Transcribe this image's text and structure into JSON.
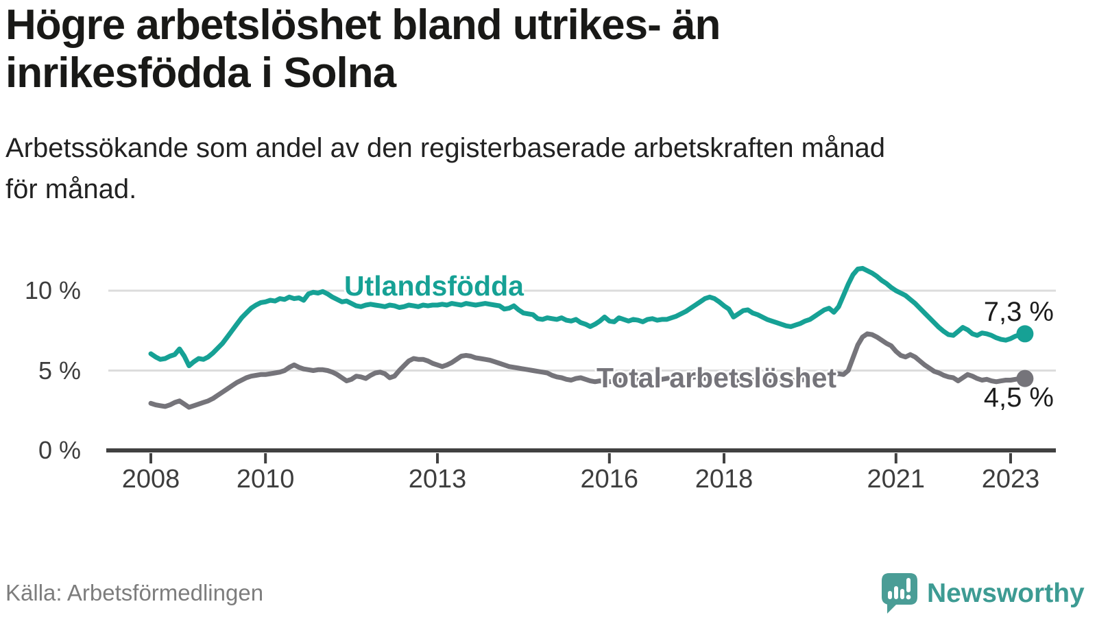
{
  "header": {
    "title_lines": [
      "Högre arbetslöshet bland utrikes- än",
      "inrikesfödda i Solna"
    ],
    "subtitle_lines": [
      "Arbetssökande som andel av den registerbaserade arbetskraften månad",
      "för månad."
    ]
  },
  "footer": {
    "source": "Källa: Arbetsförmedlingen",
    "brand": "Newsworthy"
  },
  "colors": {
    "series_foreign_born": "#16a195",
    "series_total": "#75747a",
    "gridline": "#dcdcdc",
    "axis": "#414141",
    "brand_teal": "#4a9d96"
  },
  "chart_data": {
    "type": "line",
    "title": "Arbetssökande som andel av den registerbaserade arbetskraften månad för månad",
    "x_unit": "month",
    "x_start_year": 2008,
    "x_end": "2023-04",
    "x_ticks": [
      2008,
      2010,
      2013,
      2016,
      2018,
      2021,
      2023
    ],
    "y_ticks": [
      {
        "label": "0 %",
        "value": 0
      },
      {
        "label": "5 %",
        "value": 5
      },
      {
        "label": "10 %",
        "value": 10
      }
    ],
    "ylim": [
      0,
      12
    ],
    "grid": "horizontal",
    "legend_position": "inline-labels",
    "series": [
      {
        "name": "Utlandsfödda",
        "end_label": "7,3 %",
        "end_value": 7.3,
        "color": "#16a195",
        "values": [
          6.05,
          5.85,
          5.7,
          5.75,
          5.9,
          6.0,
          6.35,
          5.9,
          5.3,
          5.55,
          5.75,
          5.7,
          5.85,
          6.1,
          6.4,
          6.7,
          7.1,
          7.5,
          7.9,
          8.3,
          8.6,
          8.9,
          9.1,
          9.25,
          9.3,
          9.4,
          9.35,
          9.5,
          9.45,
          9.6,
          9.5,
          9.55,
          9.4,
          9.8,
          9.9,
          9.85,
          9.95,
          9.8,
          9.6,
          9.45,
          9.3,
          9.35,
          9.2,
          9.05,
          9.0,
          9.1,
          9.15,
          9.1,
          9.05,
          9.0,
          9.1,
          9.05,
          8.95,
          9.0,
          9.1,
          9.05,
          9.0,
          9.1,
          9.05,
          9.1,
          9.1,
          9.15,
          9.1,
          9.2,
          9.15,
          9.1,
          9.2,
          9.15,
          9.1,
          9.15,
          9.2,
          9.15,
          9.1,
          9.05,
          8.85,
          8.9,
          9.05,
          8.8,
          8.6,
          8.55,
          8.5,
          8.25,
          8.2,
          8.3,
          8.25,
          8.2,
          8.3,
          8.15,
          8.1,
          8.2,
          8.0,
          7.9,
          7.75,
          7.9,
          8.1,
          8.35,
          8.1,
          8.05,
          8.3,
          8.2,
          8.1,
          8.2,
          8.15,
          8.05,
          8.2,
          8.25,
          8.15,
          8.2,
          8.2,
          8.3,
          8.4,
          8.55,
          8.7,
          8.9,
          9.1,
          9.3,
          9.5,
          9.6,
          9.5,
          9.3,
          9.05,
          8.85,
          8.35,
          8.55,
          8.75,
          8.8,
          8.6,
          8.5,
          8.35,
          8.2,
          8.1,
          8.0,
          7.9,
          7.8,
          7.75,
          7.85,
          7.95,
          8.1,
          8.2,
          8.4,
          8.6,
          8.8,
          8.9,
          8.65,
          9.0,
          9.7,
          10.4,
          11.0,
          11.35,
          11.4,
          11.25,
          11.1,
          10.9,
          10.65,
          10.45,
          10.2,
          10.0,
          9.85,
          9.7,
          9.45,
          9.2,
          8.9,
          8.6,
          8.3,
          8.0,
          7.7,
          7.45,
          7.25,
          7.2,
          7.45,
          7.7,
          7.55,
          7.3,
          7.2,
          7.35,
          7.3,
          7.2,
          7.05,
          6.95,
          6.9,
          7.0,
          7.15,
          7.25,
          7.3
        ]
      },
      {
        "name": "Total arbetslöshet",
        "end_label": "4,5 %",
        "end_value": 4.5,
        "color": "#75747a",
        "values": [
          2.95,
          2.85,
          2.8,
          2.75,
          2.85,
          3.0,
          3.1,
          2.9,
          2.7,
          2.8,
          2.9,
          3.0,
          3.1,
          3.25,
          3.45,
          3.65,
          3.85,
          4.05,
          4.25,
          4.4,
          4.55,
          4.65,
          4.7,
          4.75,
          4.75,
          4.8,
          4.85,
          4.9,
          5.0,
          5.2,
          5.35,
          5.2,
          5.1,
          5.05,
          5.0,
          5.05,
          5.05,
          5.0,
          4.9,
          4.75,
          4.55,
          4.35,
          4.45,
          4.65,
          4.6,
          4.5,
          4.7,
          4.85,
          4.9,
          4.8,
          4.55,
          4.65,
          5.0,
          5.3,
          5.6,
          5.75,
          5.7,
          5.7,
          5.6,
          5.45,
          5.35,
          5.25,
          5.35,
          5.5,
          5.7,
          5.9,
          5.95,
          5.9,
          5.8,
          5.75,
          5.7,
          5.65,
          5.55,
          5.45,
          5.35,
          5.25,
          5.2,
          5.15,
          5.1,
          5.05,
          5.0,
          4.95,
          4.9,
          4.85,
          4.7,
          4.6,
          4.55,
          4.45,
          4.4,
          4.5,
          4.55,
          4.45,
          4.35,
          4.3,
          4.35,
          4.3,
          4.3,
          4.35,
          4.4,
          4.35,
          4.3,
          4.35,
          4.4,
          4.45,
          4.4,
          4.35,
          4.4,
          4.45,
          4.5,
          4.55,
          4.5,
          4.45,
          4.5,
          4.55,
          4.6,
          4.55,
          4.5,
          4.45,
          4.5,
          4.45,
          4.4,
          4.45,
          4.4,
          4.35,
          4.4,
          4.45,
          4.4,
          4.35,
          4.3,
          4.35,
          4.3,
          4.35,
          4.3,
          4.35,
          4.4,
          4.35,
          4.4,
          4.45,
          4.5,
          4.55,
          4.6,
          4.65,
          4.7,
          4.75,
          4.8,
          4.75,
          5.0,
          5.8,
          6.6,
          7.1,
          7.3,
          7.25,
          7.1,
          6.9,
          6.7,
          6.55,
          6.2,
          5.95,
          5.85,
          6.0,
          5.85,
          5.6,
          5.35,
          5.15,
          4.95,
          4.85,
          4.7,
          4.6,
          4.55,
          4.35,
          4.55,
          4.75,
          4.65,
          4.5,
          4.4,
          4.45,
          4.35,
          4.3,
          4.35,
          4.4,
          4.4,
          4.45,
          4.5,
          4.5
        ]
      }
    ]
  }
}
